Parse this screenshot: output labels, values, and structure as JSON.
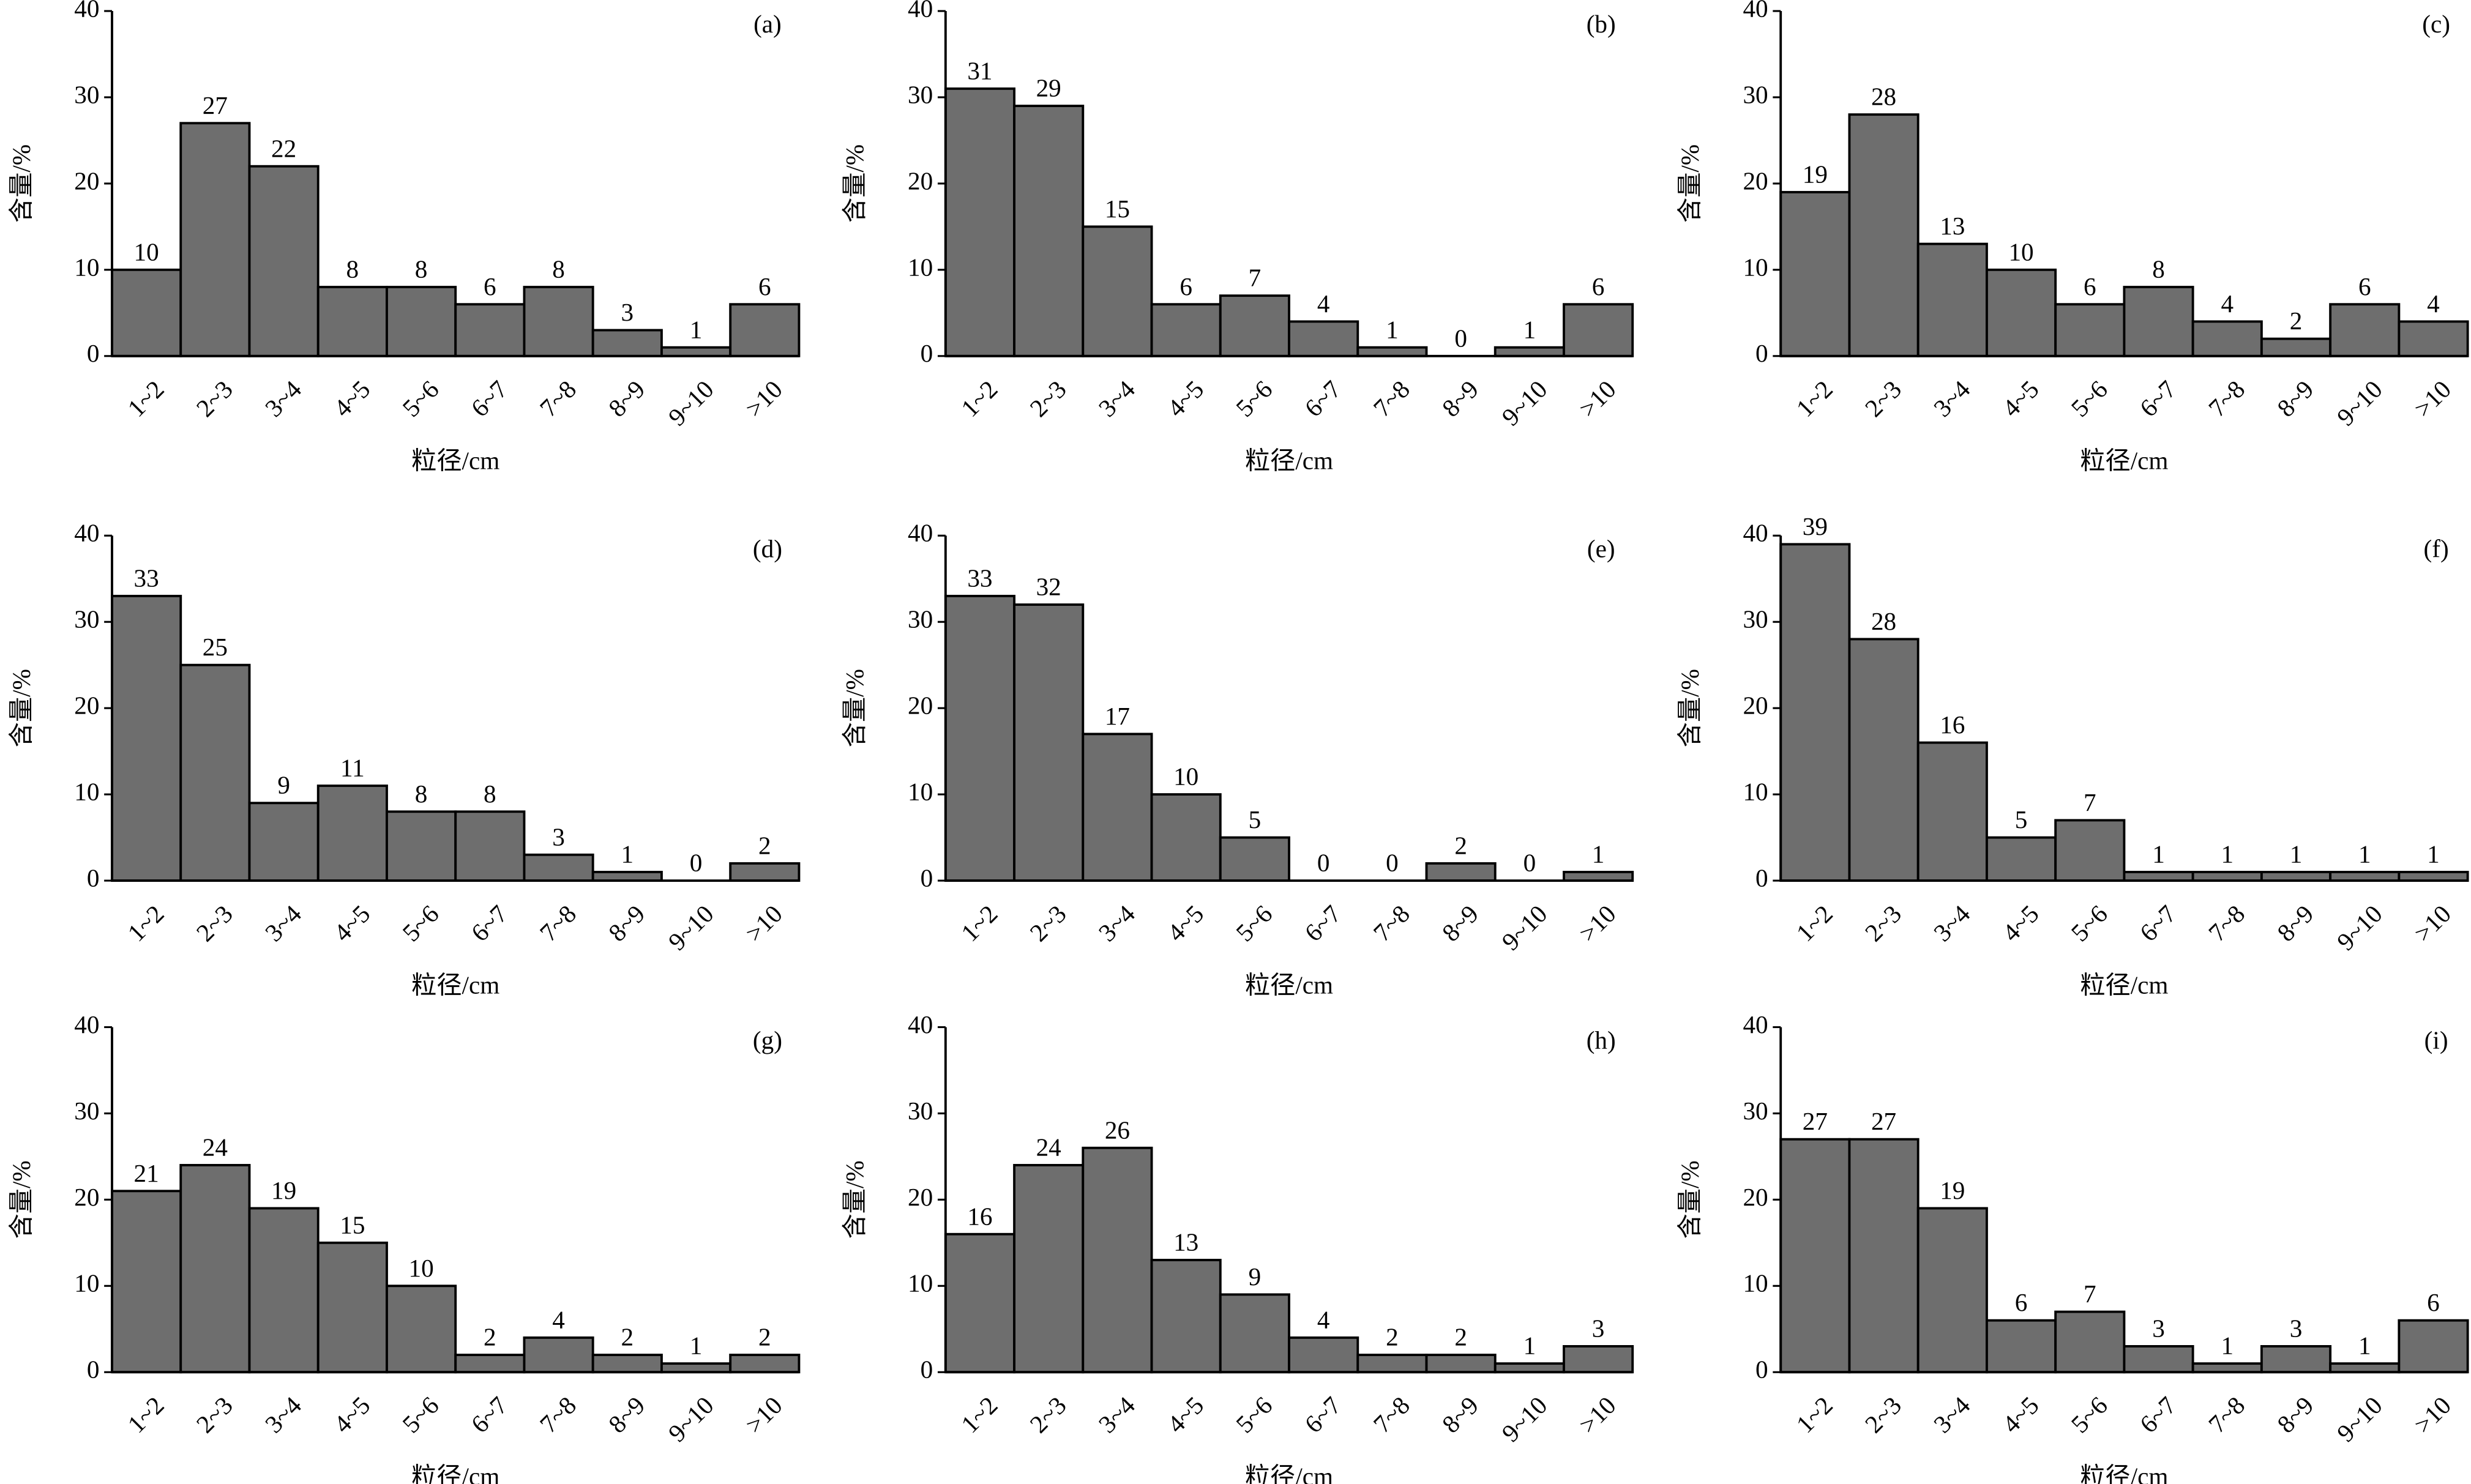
{
  "chart_data": [
    {
      "type": "bar",
      "title": "(a)",
      "xlabel": "粒径/cm",
      "ylabel": "含量/%",
      "color": "#6e6e6e",
      "categories": [
        "1~2",
        "2~3",
        "3~4",
        "4~5",
        "5~6",
        "6~7",
        "7~8",
        "8~9",
        "9~10",
        ">10"
      ],
      "values": [
        10,
        27,
        22,
        8,
        8,
        6,
        8,
        3,
        1,
        6
      ],
      "ylim": [
        0,
        40
      ],
      "yticks": [
        0,
        10,
        20,
        30,
        40
      ]
    },
    {
      "type": "bar",
      "title": "(b)",
      "xlabel": "粒径/cm",
      "ylabel": "含量/%",
      "color": "#6e6e6e",
      "categories": [
        "1~2",
        "2~3",
        "3~4",
        "4~5",
        "5~6",
        "6~7",
        "7~8",
        "8~9",
        "9~10",
        ">10"
      ],
      "values": [
        31,
        29,
        15,
        6,
        7,
        4,
        1,
        0,
        1,
        6
      ],
      "ylim": [
        0,
        40
      ],
      "yticks": [
        0,
        10,
        20,
        30,
        40
      ]
    },
    {
      "type": "bar",
      "title": "(c)",
      "xlabel": "粒径/cm",
      "ylabel": "含量/%",
      "color": "#6e6e6e",
      "categories": [
        "1~2",
        "2~3",
        "3~4",
        "4~5",
        "5~6",
        "6~7",
        "7~8",
        "8~9",
        "9~10",
        ">10"
      ],
      "values": [
        19,
        28,
        13,
        10,
        6,
        8,
        4,
        2,
        6,
        4
      ],
      "ylim": [
        0,
        40
      ],
      "yticks": [
        0,
        10,
        20,
        30,
        40
      ]
    },
    {
      "type": "bar",
      "title": "(d)",
      "xlabel": "粒径/cm",
      "ylabel": "含量/%",
      "color": "#6e6e6e",
      "categories": [
        "1~2",
        "2~3",
        "3~4",
        "4~5",
        "5~6",
        "6~7",
        "7~8",
        "8~9",
        "9~10",
        ">10"
      ],
      "values": [
        33,
        25,
        9,
        11,
        8,
        8,
        3,
        1,
        0,
        2
      ],
      "ylim": [
        0,
        40
      ],
      "yticks": [
        0,
        10,
        20,
        30,
        40
      ]
    },
    {
      "type": "bar",
      "title": "(e)",
      "xlabel": "粒径/cm",
      "ylabel": "含量/%",
      "color": "#6e6e6e",
      "categories": [
        "1~2",
        "2~3",
        "3~4",
        "4~5",
        "5~6",
        "6~7",
        "7~8",
        "8~9",
        "9~10",
        ">10"
      ],
      "values": [
        33,
        32,
        17,
        10,
        5,
        0,
        0,
        2,
        0,
        1
      ],
      "ylim": [
        0,
        40
      ],
      "yticks": [
        0,
        10,
        20,
        30,
        40
      ]
    },
    {
      "type": "bar",
      "title": "(f)",
      "xlabel": "粒径/cm",
      "ylabel": "含量/%",
      "color": "#6e6e6e",
      "categories": [
        "1~2",
        "2~3",
        "3~4",
        "4~5",
        "5~6",
        "6~7",
        "7~8",
        "8~9",
        "9~10",
        ">10"
      ],
      "values": [
        39,
        28,
        16,
        5,
        7,
        1,
        1,
        1,
        1,
        1
      ],
      "ylim": [
        0,
        40
      ],
      "yticks": [
        0,
        10,
        20,
        30,
        40
      ]
    },
    {
      "type": "bar",
      "title": "(g)",
      "xlabel": "粒径/cm",
      "ylabel": "含量/%",
      "color": "#6e6e6e",
      "categories": [
        "1~2",
        "2~3",
        "3~4",
        "4~5",
        "5~6",
        "6~7",
        "7~8",
        "8~9",
        "9~10",
        ">10"
      ],
      "values": [
        21,
        24,
        19,
        15,
        10,
        2,
        4,
        2,
        1,
        2
      ],
      "ylim": [
        0,
        40
      ],
      "yticks": [
        0,
        10,
        20,
        30,
        40
      ]
    },
    {
      "type": "bar",
      "title": "(h)",
      "xlabel": "粒径/cm",
      "ylabel": "含量/%",
      "color": "#6e6e6e",
      "categories": [
        "1~2",
        "2~3",
        "3~4",
        "4~5",
        "5~6",
        "6~7",
        "7~8",
        "8~9",
        "9~10",
        ">10"
      ],
      "values": [
        16,
        24,
        26,
        13,
        9,
        4,
        2,
        2,
        1,
        3
      ],
      "ylim": [
        0,
        40
      ],
      "yticks": [
        0,
        10,
        20,
        30,
        40
      ]
    },
    {
      "type": "bar",
      "title": "(i)",
      "xlabel": "粒径/cm",
      "ylabel": "含量/%",
      "color": "#6e6e6e",
      "categories": [
        "1~2",
        "2~3",
        "3~4",
        "4~5",
        "5~6",
        "6~7",
        "7~8",
        "8~9",
        "9~10",
        ">10"
      ],
      "values": [
        27,
        27,
        19,
        6,
        7,
        3,
        1,
        3,
        1,
        6
      ],
      "ylim": [
        0,
        40
      ],
      "yticks": [
        0,
        10,
        20,
        30,
        40
      ]
    }
  ]
}
